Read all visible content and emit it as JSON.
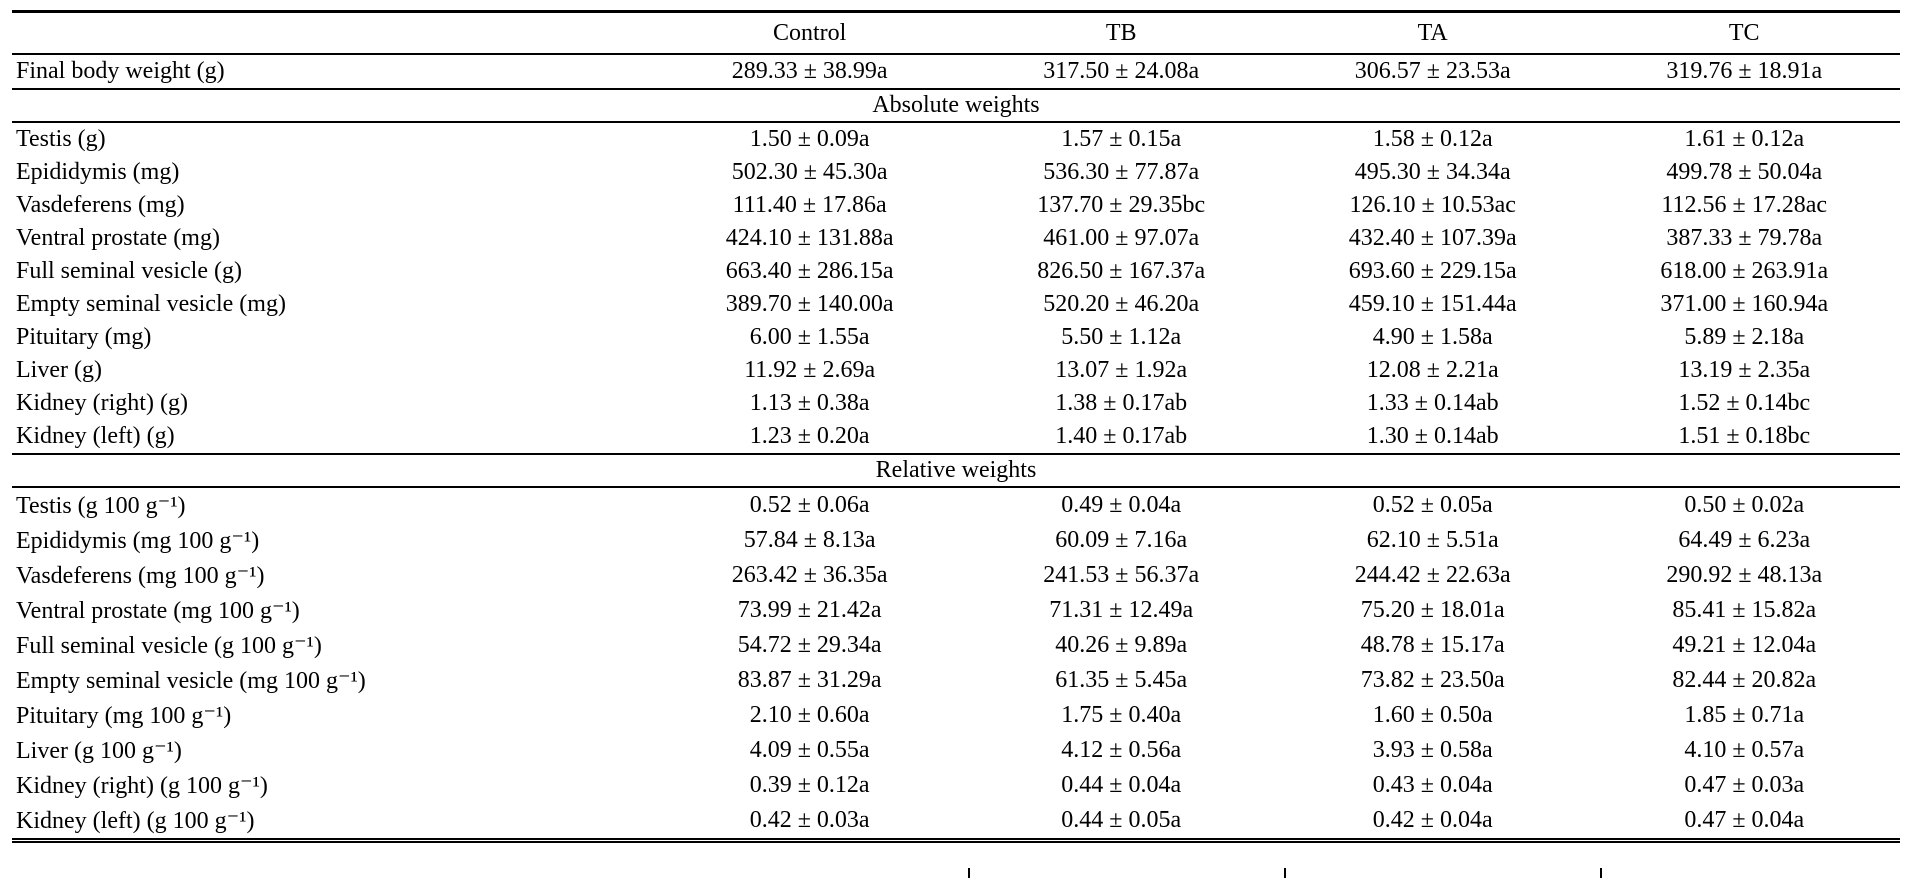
{
  "table": {
    "header": {
      "row_label": "",
      "columns": [
        "Control",
        "TB",
        "TA",
        "TC"
      ]
    },
    "rows": [
      {
        "type": "data",
        "label": "Final body weight (g)",
        "values": [
          "289.33 ± 38.99a",
          "317.50 ± 24.08a",
          "306.57 ± 23.53a",
          "319.76 ± 18.91a"
        ]
      },
      {
        "type": "section",
        "title": "Absolute weights"
      },
      {
        "type": "data",
        "label": "Testis (g)",
        "values": [
          "1.50 ± 0.09a",
          "1.57 ± 0.15a",
          "1.58 ± 0.12a",
          "1.61 ± 0.12a"
        ]
      },
      {
        "type": "data",
        "label": "Epididymis (mg)",
        "values": [
          "502.30 ± 45.30a",
          "536.30 ± 77.87a",
          "495.30 ± 34.34a",
          "499.78 ± 50.04a"
        ]
      },
      {
        "type": "data",
        "label": "Vasdeferens (mg)",
        "values": [
          "111.40 ± 17.86a",
          "137.70 ± 29.35bc",
          "126.10 ± 10.53ac",
          "112.56 ± 17.28ac"
        ]
      },
      {
        "type": "data",
        "label": "Ventral prostate (mg)",
        "values": [
          "424.10 ± 131.88a",
          "461.00 ± 97.07a",
          "432.40 ± 107.39a",
          "387.33 ± 79.78a"
        ]
      },
      {
        "type": "data",
        "label": "Full seminal vesicle (g)",
        "values": [
          "663.40 ± 286.15a",
          "826.50 ± 167.37a",
          "693.60 ± 229.15a",
          "618.00 ± 263.91a"
        ]
      },
      {
        "type": "data",
        "label": "Empty seminal vesicle (mg)",
        "values": [
          "389.70 ± 140.00a",
          "520.20 ± 46.20a",
          "459.10 ± 151.44a",
          "371.00 ± 160.94a"
        ]
      },
      {
        "type": "data",
        "label": "Pituitary (mg)",
        "values": [
          "6.00 ± 1.55a",
          "5.50 ± 1.12a",
          "4.90 ± 1.58a",
          "5.89 ± 2.18a"
        ]
      },
      {
        "type": "data",
        "label": "Liver (g)",
        "values": [
          "11.92 ± 2.69a",
          "13.07 ± 1.92a",
          "12.08 ± 2.21a",
          "13.19 ± 2.35a"
        ]
      },
      {
        "type": "data",
        "label": "Kidney (right) (g)",
        "values": [
          "1.13 ± 0.38a",
          "1.38 ± 0.17ab",
          "1.33 ± 0.14ab",
          "1.52 ± 0.14bc"
        ]
      },
      {
        "type": "data",
        "label": "Kidney (left) (g)",
        "values": [
          "1.23 ± 0.20a",
          "1.40 ± 0.17ab",
          "1.30 ± 0.14ab",
          "1.51 ± 0.18bc"
        ]
      },
      {
        "type": "section",
        "title": "Relative weights"
      },
      {
        "type": "data",
        "label": "Testis (g 100 g⁻¹)",
        "values": [
          "0.52 ± 0.06a",
          "0.49 ± 0.04a",
          "0.52 ± 0.05a",
          "0.50 ± 0.02a"
        ]
      },
      {
        "type": "data",
        "label": "Epididymis (mg 100 g⁻¹)",
        "values": [
          "57.84 ± 8.13a",
          "60.09 ± 7.16a",
          "62.10 ± 5.51a",
          "64.49 ± 6.23a"
        ]
      },
      {
        "type": "data",
        "label": "Vasdeferens (mg 100 g⁻¹)",
        "values": [
          "263.42 ± 36.35a",
          "241.53 ± 56.37a",
          "244.42 ± 22.63a",
          "290.92 ± 48.13a"
        ]
      },
      {
        "type": "data",
        "label": "Ventral prostate (mg 100 g⁻¹)",
        "values": [
          "73.99 ± 21.42a",
          "71.31 ± 12.49a",
          "75.20 ± 18.01a",
          "85.41 ± 15.82a"
        ]
      },
      {
        "type": "data",
        "label": "Full seminal vesicle (g 100 g⁻¹)",
        "values": [
          "54.72 ± 29.34a",
          "40.26 ± 9.89a",
          "48.78 ± 15.17a",
          "49.21 ± 12.04a"
        ]
      },
      {
        "type": "data",
        "label": "Empty seminal vesicle (mg 100 g⁻¹)",
        "values": [
          "83.87 ± 31.29a",
          "61.35 ± 5.45a",
          "73.82 ± 23.50a",
          "82.44 ± 20.82a"
        ]
      },
      {
        "type": "data",
        "label": "Pituitary (mg 100 g⁻¹)",
        "values": [
          "2.10 ± 0.60a",
          "1.75 ± 0.40a",
          "1.60 ± 0.50a",
          "1.85 ± 0.71a"
        ]
      },
      {
        "type": "data",
        "label": "Liver (g 100 g⁻¹)",
        "values": [
          "4.09 ± 0.55a",
          "4.12 ± 0.56a",
          "3.93 ± 0.58a",
          "4.10 ± 0.57a"
        ]
      },
      {
        "type": "data",
        "label": "Kidney (right) (g 100 g⁻¹)",
        "values": [
          "0.39 ± 0.12a",
          "0.44 ± 0.04a",
          "0.43 ± 0.04a",
          "0.47 ± 0.03a"
        ]
      },
      {
        "type": "data",
        "label": "Kidney (left) (g 100 g⁻¹)",
        "values": [
          "0.42 ± 0.03a",
          "0.44 ± 0.05a",
          "0.42 ± 0.04a",
          "0.47 ± 0.04a"
        ]
      }
    ]
  }
}
